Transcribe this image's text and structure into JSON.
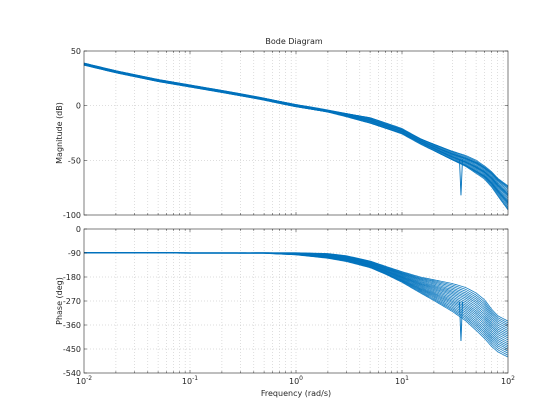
{
  "chart_data": {
    "type": "line",
    "title": "Bode Diagram",
    "xlabel": "Frequency  (rad/s)",
    "xscale": "log",
    "xlim": [
      0.01,
      100
    ],
    "x_ticks": [
      {
        "base": "10",
        "exp": "-2"
      },
      {
        "base": "10",
        "exp": "-1"
      },
      {
        "base": "10",
        "exp": "0"
      },
      {
        "base": "10",
        "exp": "1"
      },
      {
        "base": "10",
        "exp": "2"
      }
    ],
    "grid": true,
    "line_color": "#0072bd",
    "magnitude": {
      "ylabel": "Magnitude  (dB)",
      "ylim": [
        -100,
        50
      ],
      "yticks": [
        50,
        0,
        -50,
        -100
      ],
      "curve_count": 20,
      "series_band": {
        "x": [
          0.01,
          0.02,
          0.05,
          0.1,
          0.2,
          0.5,
          1,
          2,
          3,
          5,
          7,
          10,
          15,
          20,
          30,
          40,
          50,
          60,
          70,
          80,
          100
        ],
        "upper": [
          39,
          32,
          24,
          19,
          14,
          7,
          1,
          -4,
          -7,
          -11,
          -16,
          -21,
          -30,
          -35,
          -42,
          -46,
          -50,
          -55,
          -60,
          -66,
          -73
        ],
        "lower": [
          37,
          30,
          22,
          17,
          12,
          5,
          -1,
          -6,
          -10,
          -16,
          -21,
          -26,
          -35,
          -41,
          -50,
          -56,
          -62,
          -67,
          -74,
          -82,
          -95
        ]
      },
      "notch": {
        "x": 36,
        "y": -82
      }
    },
    "phase": {
      "ylabel": "Phase  (deg)",
      "ylim": [
        -540,
        0
      ],
      "yticks": [
        0,
        -90,
        -180,
        -270,
        -360,
        -450,
        -540
      ],
      "curve_count": 20,
      "series_band": {
        "x": [
          0.01,
          0.02,
          0.05,
          0.1,
          0.2,
          0.5,
          1,
          2,
          3,
          5,
          7,
          10,
          15,
          20,
          30,
          40,
          50,
          60,
          70,
          80,
          100
        ],
        "upper": [
          -88,
          -88,
          -88,
          -89,
          -89,
          -89,
          -89,
          -92,
          -100,
          -120,
          -140,
          -160,
          -180,
          -190,
          -205,
          -220,
          -240,
          -265,
          -300,
          -325,
          -345
        ],
        "lower": [
          -90,
          -90,
          -90,
          -91,
          -91,
          -91,
          -97,
          -110,
          -122,
          -145,
          -170,
          -200,
          -240,
          -268,
          -310,
          -345,
          -380,
          -410,
          -440,
          -460,
          -480
        ]
      },
      "notch": {
        "x": 36,
        "y": -420
      }
    }
  }
}
